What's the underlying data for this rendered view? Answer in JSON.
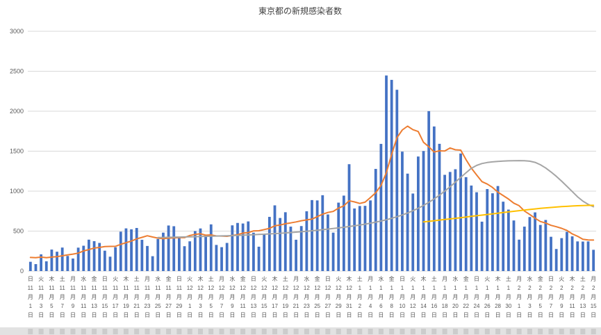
{
  "colors": {
    "background": "#ffffff",
    "bar": "#4472C4",
    "orange_line": "#ED7D31",
    "gray_line": "#A5A5A5",
    "yellow_line": "#FFC000",
    "gridline": "#D9D9D9",
    "axis_text": "#595959",
    "title_text": "#404040",
    "bottom_band": "#e2e2e2",
    "bottom_band_mark": "#cccccc"
  },
  "chart_data": {
    "type": "bar",
    "title": "東京都の新規感染者数",
    "xlabel": "",
    "ylabel": "",
    "ylim": [
      0,
      3000
    ],
    "yticks": [
      0,
      500,
      1000,
      1500,
      2000,
      2500,
      3000
    ],
    "grid": true,
    "legend": "none",
    "x_unit_month": "月",
    "x_unit_day": "日",
    "x_tick_every": 2,
    "x_ticks": [
      [
        "日",
        11,
        1
      ],
      [
        "火",
        11,
        3
      ],
      [
        "木",
        11,
        5
      ],
      [
        "土",
        11,
        7
      ],
      [
        "月",
        11,
        9
      ],
      [
        "水",
        11,
        11
      ],
      [
        "金",
        11,
        13
      ],
      [
        "日",
        11,
        15
      ],
      [
        "火",
        11,
        17
      ],
      [
        "木",
        11,
        19
      ],
      [
        "土",
        11,
        21
      ],
      [
        "月",
        11,
        23
      ],
      [
        "水",
        11,
        25
      ],
      [
        "金",
        11,
        27
      ],
      [
        "日",
        11,
        29
      ],
      [
        "火",
        12,
        1
      ],
      [
        "木",
        12,
        3
      ],
      [
        "土",
        12,
        5
      ],
      [
        "月",
        12,
        7
      ],
      [
        "水",
        12,
        9
      ],
      [
        "金",
        12,
        11
      ],
      [
        "日",
        12,
        13
      ],
      [
        "火",
        12,
        15
      ],
      [
        "木",
        12,
        17
      ],
      [
        "土",
        12,
        19
      ],
      [
        "月",
        12,
        21
      ],
      [
        "水",
        12,
        23
      ],
      [
        "金",
        12,
        25
      ],
      [
        "日",
        12,
        27
      ],
      [
        "火",
        12,
        29
      ],
      [
        "木",
        12,
        31
      ],
      [
        "土",
        1,
        2
      ],
      [
        "月",
        1,
        4
      ],
      [
        "水",
        1,
        6
      ],
      [
        "金",
        1,
        8
      ],
      [
        "日",
        1,
        10
      ],
      [
        "火",
        1,
        12
      ],
      [
        "木",
        1,
        14
      ],
      [
        "土",
        1,
        16
      ],
      [
        "月",
        1,
        18
      ],
      [
        "水",
        1,
        20
      ],
      [
        "金",
        1,
        22
      ],
      [
        "日",
        1,
        24
      ],
      [
        "火",
        1,
        26
      ],
      [
        "木",
        1,
        28
      ],
      [
        "土",
        1,
        30
      ],
      [
        "月",
        2,
        1
      ],
      [
        "水",
        2,
        3
      ],
      [
        "金",
        2,
        5
      ],
      [
        "日",
        2,
        7
      ],
      [
        "火",
        2,
        9
      ],
      [
        "木",
        2,
        11
      ],
      [
        "土",
        2,
        13
      ],
      [
        "月",
        2,
        15
      ]
    ],
    "series": [
      {
        "name": "新規感染者数",
        "type": "bar",
        "color": "#4472C4",
        "values": [
          116,
          87,
          209,
          122,
          269,
          242,
          294,
          189,
          157,
          293,
          317,
          393,
          374,
          352,
          255,
          180,
          298,
          493,
          534,
          522,
          539,
          391,
          314,
          186,
          401,
          481,
          570,
          561,
          418,
          311,
          372,
          500,
          533,
          449,
          584,
          327,
          299,
          352,
          572,
          602,
          595,
          621,
          480,
          305,
          460,
          678,
          822,
          664,
          736,
          556,
          392,
          563,
          748,
          888,
          884,
          949,
          708,
          481,
          856,
          944,
          1337,
          783,
          814,
          816,
          884,
          1278,
          1591,
          2447,
          2392,
          2268,
          1494,
          1219,
          970,
          1433,
          1502,
          2001,
          1809,
          1592,
          1204,
          1240,
          1274,
          1471,
          1175,
          1070,
          986,
          618,
          1026,
          973,
          1064,
          868,
          769,
          633,
          393,
          556,
          676,
          734,
          577,
          639,
          429,
          276,
          412,
          491,
          434,
          371,
          369,
          371,
          266
        ]
      },
      {
        "name": "orange_line",
        "type": "line",
        "color": "#ED7D31",
        "values": [
          170,
          167,
          175,
          168,
          175,
          180,
          191,
          202,
          212,
          224,
          252,
          269,
          288,
          296,
          306,
          309,
          310,
          335,
          355,
          376,
          403,
          422,
          442,
          426,
          412,
          405,
          412,
          415,
          419,
          418,
          445,
          459,
          466,
          449,
          452,
          439,
          438,
          435,
          445,
          455,
          476,
          481,
          503,
          504,
          519,
          534,
          566,
          576,
          592,
          603,
          615,
          630,
          640,
          650,
          681,
          711,
          733,
          746,
          788,
          816,
          880,
          865,
          846,
          862,
          919,
          979,
          1072,
          1230,
          1460,
          1668,
          1765,
          1813,
          1769,
          1746,
          1611,
          1555,
          1490,
          1504,
          1502,
          1540,
          1517,
          1513,
          1395,
          1289,
          1203,
          1119,
          1089,
          1046,
          987,
          944,
          901,
          850,
          818,
          751,
          708,
          661,
          620,
          601,
          572,
          555,
          535,
          508,
          465,
          436,
          397,
          389,
          388
        ]
      },
      {
        "name": "gray_line",
        "type": "line",
        "color": "#A5A5A5",
        "values": [
          null,
          null,
          null,
          null,
          null,
          null,
          null,
          null,
          null,
          null,
          null,
          null,
          null,
          null,
          null,
          null,
          null,
          null,
          null,
          null,
          null,
          null,
          null,
          null,
          420,
          421,
          423,
          424,
          425,
          427,
          428,
          430,
          432,
          434,
          436,
          438,
          440,
          442,
          444,
          446,
          449,
          452,
          455,
          458,
          461,
          465,
          469,
          473,
          477,
          482,
          487,
          492,
          498,
          504,
          511,
          518,
          525,
          532,
          540,
          548,
          557,
          566,
          576,
          587,
          599,
          612,
          626,
          642,
          660,
          680,
          702,
          727,
          755,
          786,
          821,
          860,
          903,
          950,
          1000,
          1055,
          1113,
          1172,
          1230,
          1285,
          1322,
          1345,
          1358,
          1366,
          1372,
          1376,
          1379,
          1381,
          1382,
          1381,
          1375,
          1360,
          1330,
          1290,
          1240,
          1185,
          1125,
          1060,
          995,
          930,
          875,
          835,
          805
        ]
      },
      {
        "name": "yellow_line",
        "type": "line",
        "color": "#FFC000",
        "values": [
          null,
          null,
          null,
          null,
          null,
          null,
          null,
          null,
          null,
          null,
          null,
          null,
          null,
          null,
          null,
          null,
          null,
          null,
          null,
          null,
          null,
          null,
          null,
          null,
          null,
          null,
          null,
          null,
          null,
          null,
          null,
          null,
          null,
          null,
          null,
          null,
          null,
          null,
          null,
          null,
          null,
          null,
          null,
          null,
          null,
          null,
          null,
          null,
          null,
          null,
          null,
          null,
          null,
          null,
          null,
          null,
          null,
          null,
          null,
          null,
          null,
          null,
          null,
          null,
          null,
          null,
          null,
          null,
          null,
          null,
          null,
          null,
          null,
          null,
          615,
          622,
          630,
          638,
          645,
          652,
          660,
          668,
          676,
          684,
          692,
          700,
          708,
          716,
          724,
          732,
          740,
          748,
          756,
          763,
          770,
          777,
          784,
          790,
          796,
          801,
          806,
          810,
          814,
          817,
          820,
          822,
          823
        ]
      }
    ]
  }
}
